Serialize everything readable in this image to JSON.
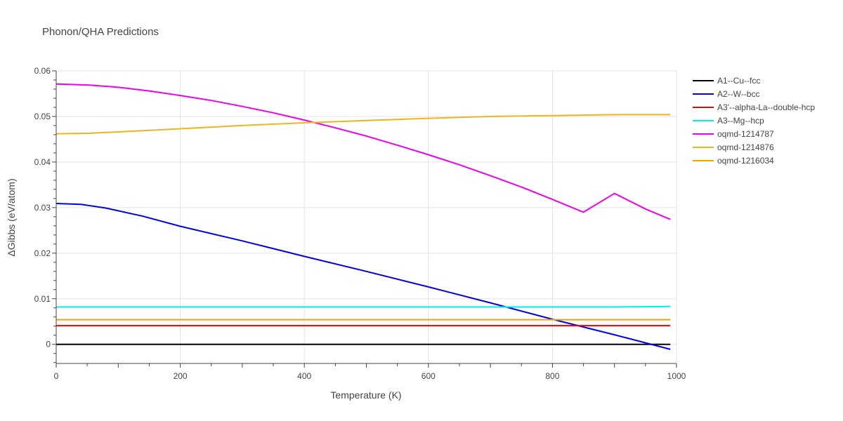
{
  "chart_data": {
    "type": "line",
    "title": "Phonon/QHA Predictions",
    "xlabel": "Temperature (K)",
    "ylabel": "ΔGibbs (eV/atom)",
    "xlim": [
      0,
      1000
    ],
    "ylim": [
      -0.0042,
      0.06
    ],
    "xticks": [
      0,
      200,
      400,
      600,
      800,
      1000
    ],
    "xtick_labels": [
      "0",
      "200",
      "400",
      "600",
      "800",
      "1000"
    ],
    "yticks": [
      0,
      0.01,
      0.02,
      0.03,
      0.04,
      0.05,
      0.06
    ],
    "ytick_labels": [
      "0",
      "0.01",
      "0.02",
      "0.03",
      "0.04",
      "0.05",
      "0.06"
    ],
    "grid": true,
    "legend_position": "right",
    "series": [
      {
        "name": "A1--Cu--fcc",
        "color": "#000000",
        "x": [
          0,
          100,
          200,
          300,
          400,
          500,
          600,
          700,
          800,
          900,
          990
        ],
        "y": [
          0,
          0,
          0,
          0,
          0,
          0,
          0,
          0,
          0,
          0,
          0
        ]
      },
      {
        "name": "A2--W--bcc",
        "color": "#0000ee",
        "x": [
          0,
          40,
          80,
          140,
          200,
          300,
          400,
          500,
          600,
          700,
          800,
          900,
          990
        ],
        "y": [
          0.0309,
          0.0307,
          0.0299,
          0.0281,
          0.0259,
          0.0227,
          0.0193,
          0.016,
          0.0126,
          0.0091,
          0.0055,
          0.0021,
          -0.0011
        ]
      },
      {
        "name": "A3'--alpha-La--double-hcp",
        "color": "#ee0000",
        "x": [
          0,
          100,
          200,
          300,
          400,
          500,
          600,
          700,
          800,
          900,
          990
        ],
        "y": [
          0.0041,
          0.0041,
          0.0041,
          0.0041,
          0.0041,
          0.0041,
          0.0041,
          0.0041,
          0.0041,
          0.0041,
          0.0041
        ]
      },
      {
        "name": "A3--Mg--hcp",
        "color": "#00eeee",
        "x": [
          0,
          100,
          200,
          300,
          400,
          500,
          600,
          700,
          800,
          900,
          990
        ],
        "y": [
          0.0082,
          0.0082,
          0.0082,
          0.0082,
          0.0082,
          0.0082,
          0.0082,
          0.0082,
          0.0082,
          0.0082,
          0.0083
        ]
      },
      {
        "name": "oqmd-1214787",
        "color": "#ee00ee",
        "x": [
          0,
          50,
          100,
          150,
          200,
          250,
          300,
          350,
          400,
          450,
          500,
          550,
          600,
          650,
          700,
          750,
          800,
          850,
          900,
          950,
          990
        ],
        "y": [
          0.0571,
          0.0569,
          0.0564,
          0.0556,
          0.0546,
          0.0535,
          0.0522,
          0.0508,
          0.0492,
          0.0475,
          0.0457,
          0.0437,
          0.0416,
          0.0394,
          0.037,
          0.0345,
          0.0318,
          0.029,
          0.0331,
          0.0297,
          0.0274
        ]
      },
      {
        "name": "oqmd-1214876",
        "color": "#eeb422",
        "x": [
          0,
          50,
          100,
          200,
          300,
          400,
          500,
          600,
          700,
          800,
          900,
          990
        ],
        "y": [
          0.0462,
          0.0463,
          0.0466,
          0.0473,
          0.048,
          0.0486,
          0.0491,
          0.0496,
          0.05,
          0.0502,
          0.0504,
          0.0504
        ]
      },
      {
        "name": "oqmd-1216034",
        "color": "#eea500",
        "x": [
          0,
          100,
          200,
          300,
          400,
          500,
          600,
          700,
          800,
          900,
          990
        ],
        "y": [
          0.0054,
          0.0054,
          0.0054,
          0.0054,
          0.0054,
          0.0054,
          0.0054,
          0.0054,
          0.0054,
          0.0054,
          0.0054
        ]
      }
    ]
  }
}
